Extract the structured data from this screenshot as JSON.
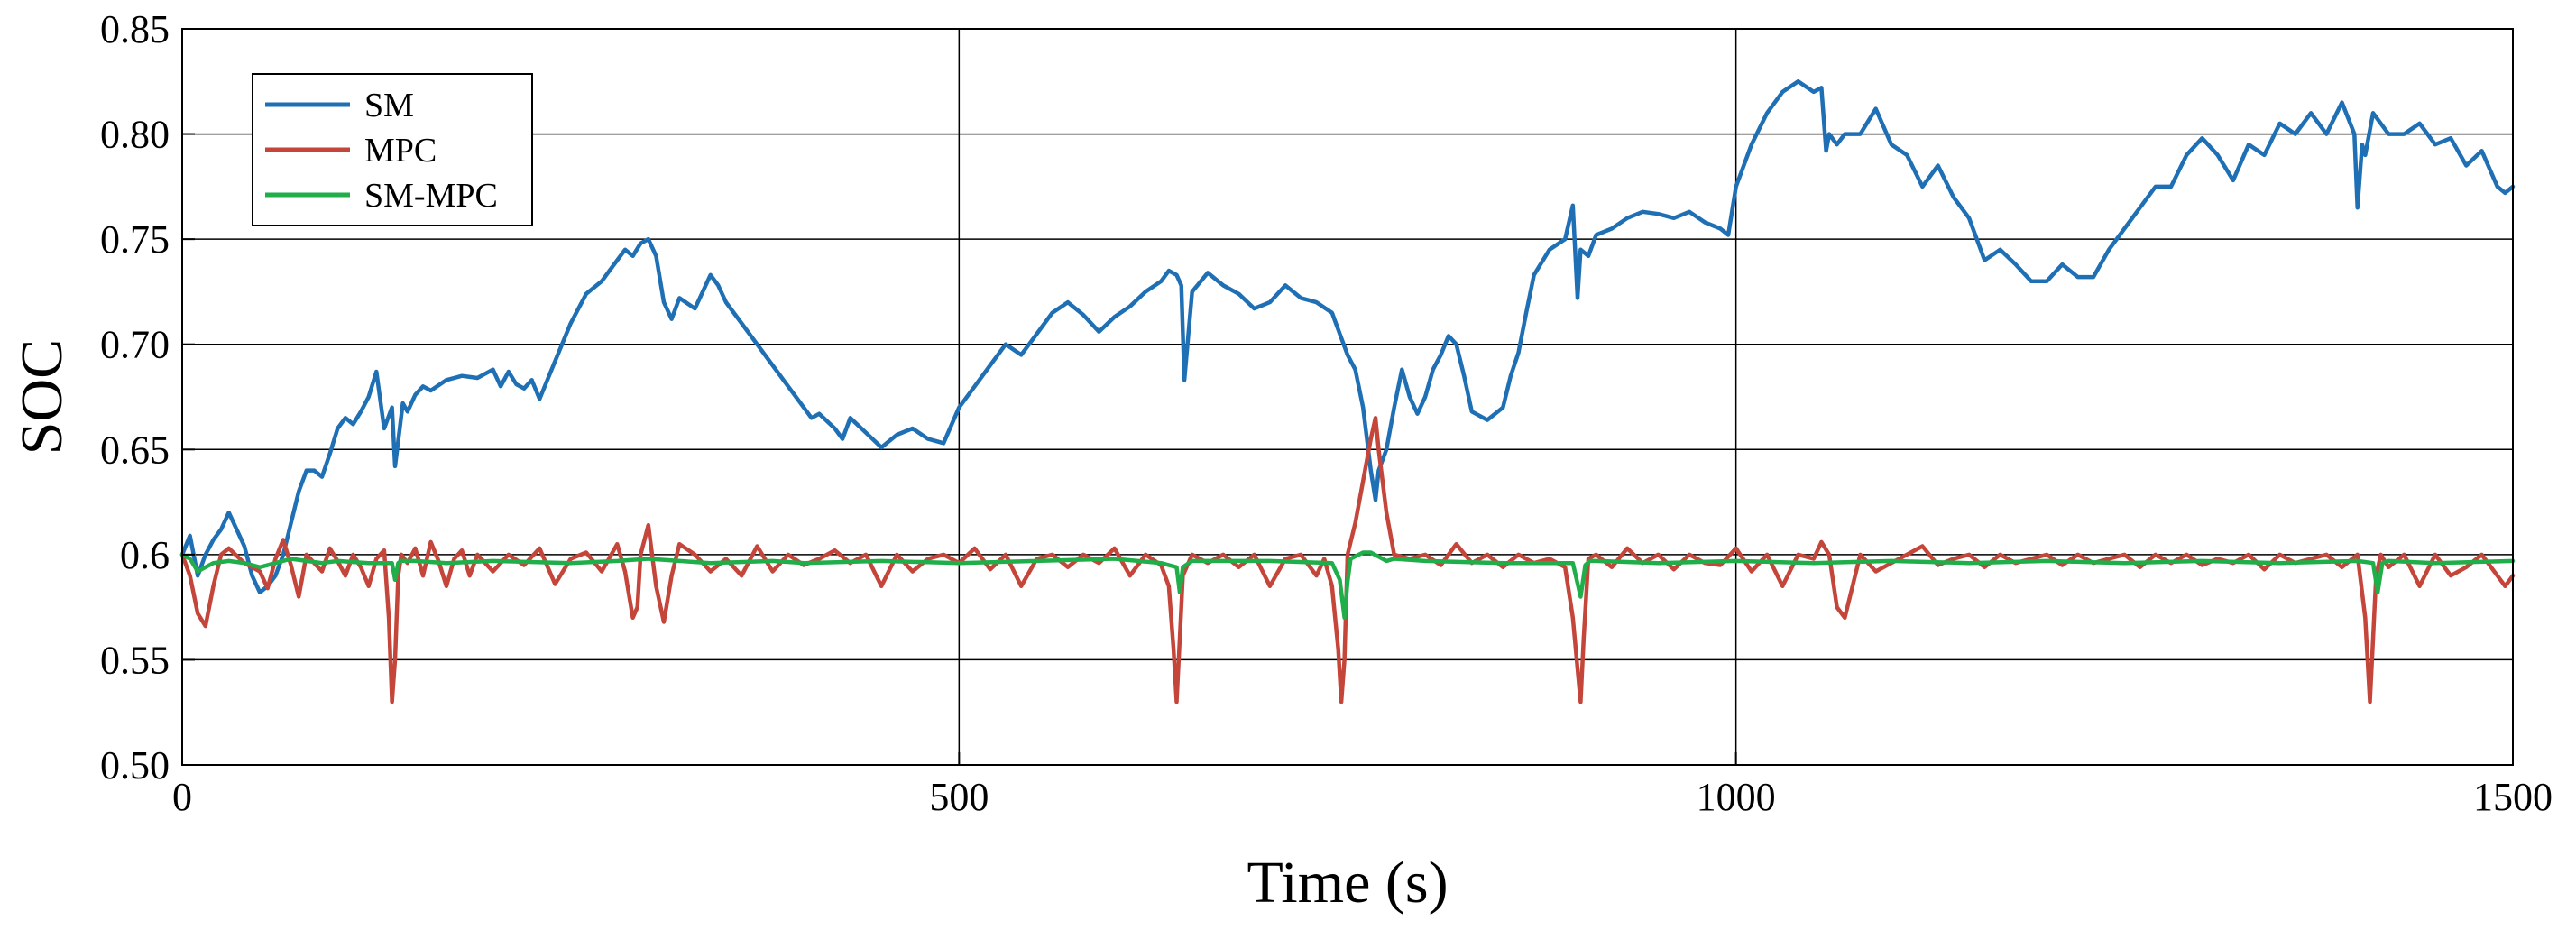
{
  "chart_data": {
    "type": "line",
    "title": "",
    "xlabel": "Time (s)",
    "ylabel": "SOC",
    "xlim": [
      0,
      1500
    ],
    "ylim": [
      0.5,
      0.85
    ],
    "grid": true,
    "legend_position": "top-left",
    "x_ticks": [
      {
        "value": 0,
        "label": "0"
      },
      {
        "value": 500,
        "label": "500"
      },
      {
        "value": 1000,
        "label": "1000"
      },
      {
        "value": 1500,
        "label": "1500"
      }
    ],
    "y_ticks": [
      {
        "value": 0.5,
        "label": "0.50"
      },
      {
        "value": 0.55,
        "label": "0.55"
      },
      {
        "value": 0.6,
        "label": "0.6"
      },
      {
        "value": 0.65,
        "label": "0.65"
      },
      {
        "value": 0.7,
        "label": "0.70"
      },
      {
        "value": 0.75,
        "label": "0.75"
      },
      {
        "value": 0.8,
        "label": "0.80"
      },
      {
        "value": 0.85,
        "label": "0.85"
      }
    ],
    "series": [
      {
        "name": "SM",
        "color": "#1f6fb4",
        "x": [
          0,
          5,
          10,
          15,
          20,
          25,
          30,
          40,
          45,
          50,
          55,
          60,
          65,
          70,
          75,
          80,
          85,
          90,
          95,
          100,
          105,
          110,
          115,
          120,
          125,
          130,
          135,
          137,
          140,
          142,
          145,
          150,
          155,
          160,
          170,
          180,
          190,
          200,
          205,
          210,
          215,
          220,
          225,
          230,
          240,
          250,
          260,
          270,
          275,
          280,
          285,
          290,
          295,
          300,
          305,
          310,
          315,
          320,
          330,
          340,
          345,
          350,
          360,
          370,
          380,
          390,
          400,
          405,
          410,
          420,
          425,
          430,
          440,
          450,
          460,
          470,
          480,
          490,
          500,
          510,
          520,
          530,
          540,
          545,
          550,
          560,
          570,
          580,
          590,
          600,
          610,
          620,
          630,
          635,
          640,
          643,
          645,
          650,
          660,
          670,
          680,
          690,
          700,
          710,
          720,
          730,
          740,
          745,
          750,
          755,
          760,
          765,
          768,
          770,
          775,
          780,
          785,
          790,
          795,
          800,
          805,
          810,
          815,
          820,
          825,
          830,
          840,
          850,
          855,
          860,
          865,
          870,
          880,
          890,
          895,
          898,
          900,
          905,
          910,
          920,
          930,
          940,
          950,
          960,
          970,
          980,
          990,
          995,
          1000,
          1010,
          1020,
          1030,
          1040,
          1050,
          1055,
          1058,
          1060,
          1065,
          1070,
          1080,
          1090,
          1100,
          1110,
          1120,
          1130,
          1140,
          1150,
          1160,
          1170,
          1180,
          1190,
          1200,
          1210,
          1220,
          1230,
          1240,
          1250,
          1260,
          1270,
          1280,
          1290,
          1300,
          1310,
          1320,
          1330,
          1340,
          1350,
          1360,
          1370,
          1380,
          1390,
          1398,
          1400,
          1403,
          1405,
          1410,
          1420,
          1430,
          1440,
          1450,
          1460,
          1470,
          1480,
          1490,
          1495,
          1500
        ],
        "y": [
          0.6,
          0.609,
          0.59,
          0.6,
          0.607,
          0.612,
          0.62,
          0.604,
          0.59,
          0.582,
          0.585,
          0.59,
          0.6,
          0.615,
          0.63,
          0.64,
          0.64,
          0.637,
          0.648,
          0.66,
          0.665,
          0.662,
          0.668,
          0.675,
          0.687,
          0.66,
          0.67,
          0.642,
          0.66,
          0.672,
          0.668,
          0.676,
          0.68,
          0.678,
          0.683,
          0.685,
          0.684,
          0.688,
          0.68,
          0.687,
          0.681,
          0.679,
          0.683,
          0.674,
          0.692,
          0.71,
          0.724,
          0.73,
          0.735,
          0.74,
          0.745,
          0.742,
          0.748,
          0.75,
          0.742,
          0.72,
          0.712,
          0.722,
          0.717,
          0.733,
          0.728,
          0.72,
          0.71,
          0.7,
          0.69,
          0.68,
          0.67,
          0.665,
          0.667,
          0.66,
          0.655,
          0.665,
          0.658,
          0.651,
          0.657,
          0.66,
          0.655,
          0.653,
          0.67,
          0.68,
          0.69,
          0.7,
          0.695,
          0.7,
          0.705,
          0.715,
          0.72,
          0.714,
          0.706,
          0.713,
          0.718,
          0.725,
          0.73,
          0.735,
          0.733,
          0.728,
          0.683,
          0.725,
          0.734,
          0.728,
          0.724,
          0.717,
          0.72,
          0.728,
          0.722,
          0.72,
          0.715,
          0.705,
          0.695,
          0.688,
          0.67,
          0.64,
          0.626,
          0.64,
          0.65,
          0.67,
          0.688,
          0.675,
          0.667,
          0.675,
          0.688,
          0.695,
          0.704,
          0.7,
          0.685,
          0.668,
          0.664,
          0.67,
          0.685,
          0.696,
          0.715,
          0.733,
          0.745,
          0.75,
          0.766,
          0.722,
          0.745,
          0.742,
          0.752,
          0.755,
          0.76,
          0.763,
          0.762,
          0.76,
          0.763,
          0.758,
          0.755,
          0.752,
          0.775,
          0.795,
          0.81,
          0.82,
          0.825,
          0.82,
          0.822,
          0.792,
          0.8,
          0.795,
          0.8,
          0.8,
          0.812,
          0.795,
          0.79,
          0.775,
          0.785,
          0.77,
          0.76,
          0.74,
          0.745,
          0.738,
          0.73,
          0.73,
          0.738,
          0.732,
          0.732,
          0.745,
          0.755,
          0.765,
          0.775,
          0.775,
          0.79,
          0.798,
          0.79,
          0.778,
          0.795,
          0.79,
          0.805,
          0.8,
          0.81,
          0.8,
          0.815,
          0.8,
          0.765,
          0.795,
          0.79,
          0.81,
          0.8,
          0.8,
          0.805,
          0.795,
          0.798,
          0.785,
          0.792,
          0.775,
          0.772,
          0.775
        ]
      },
      {
        "name": "MPC",
        "color": "#c4453a",
        "x": [
          0,
          5,
          10,
          15,
          20,
          25,
          30,
          40,
          50,
          55,
          60,
          65,
          70,
          75,
          80,
          85,
          90,
          95,
          100,
          105,
          110,
          115,
          120,
          125,
          130,
          133,
          135,
          137,
          139,
          141,
          145,
          150,
          155,
          160,
          165,
          170,
          175,
          180,
          185,
          190,
          195,
          200,
          210,
          220,
          230,
          240,
          250,
          260,
          270,
          280,
          285,
          290,
          293,
          295,
          300,
          305,
          310,
          315,
          320,
          330,
          340,
          350,
          360,
          370,
          380,
          390,
          400,
          410,
          420,
          430,
          440,
          450,
          460,
          470,
          480,
          490,
          500,
          510,
          520,
          530,
          540,
          550,
          560,
          570,
          580,
          590,
          600,
          610,
          620,
          630,
          635,
          638,
          640,
          642,
          644,
          650,
          660,
          670,
          680,
          690,
          700,
          710,
          720,
          730,
          735,
          740,
          744,
          746,
          748,
          750,
          755,
          760,
          765,
          768,
          770,
          775,
          780,
          790,
          800,
          810,
          820,
          830,
          840,
          850,
          860,
          870,
          880,
          890,
          895,
          900,
          902,
          905,
          910,
          920,
          930,
          940,
          950,
          960,
          970,
          980,
          990,
          1000,
          1010,
          1020,
          1030,
          1040,
          1050,
          1055,
          1060,
          1065,
          1070,
          1080,
          1090,
          1100,
          1110,
          1120,
          1130,
          1140,
          1150,
          1160,
          1170,
          1180,
          1190,
          1200,
          1210,
          1220,
          1230,
          1240,
          1250,
          1260,
          1270,
          1280,
          1290,
          1300,
          1310,
          1320,
          1330,
          1340,
          1350,
          1360,
          1370,
          1380,
          1390,
          1400,
          1405,
          1408,
          1410,
          1412,
          1415,
          1420,
          1430,
          1440,
          1450,
          1460,
          1470,
          1480,
          1490,
          1495,
          1500
        ],
        "y": [
          0.6,
          0.59,
          0.572,
          0.566,
          0.585,
          0.6,
          0.603,
          0.596,
          0.592,
          0.584,
          0.598,
          0.607,
          0.595,
          0.58,
          0.6,
          0.596,
          0.592,
          0.603,
          0.597,
          0.59,
          0.6,
          0.594,
          0.585,
          0.598,
          0.602,
          0.57,
          0.53,
          0.55,
          0.59,
          0.6,
          0.596,
          0.603,
          0.59,
          0.606,
          0.597,
          0.585,
          0.598,
          0.602,
          0.59,
          0.6,
          0.596,
          0.592,
          0.6,
          0.595,
          0.603,
          0.586,
          0.598,
          0.601,
          0.592,
          0.605,
          0.592,
          0.57,
          0.575,
          0.6,
          0.614,
          0.585,
          0.568,
          0.59,
          0.605,
          0.6,
          0.592,
          0.598,
          0.59,
          0.604,
          0.592,
          0.6,
          0.595,
          0.598,
          0.602,
          0.596,
          0.6,
          0.585,
          0.6,
          0.592,
          0.598,
          0.6,
          0.596,
          0.603,
          0.593,
          0.6,
          0.585,
          0.598,
          0.6,
          0.594,
          0.6,
          0.596,
          0.603,
          0.59,
          0.6,
          0.595,
          0.585,
          0.555,
          0.53,
          0.56,
          0.59,
          0.6,
          0.596,
          0.6,
          0.594,
          0.6,
          0.585,
          0.598,
          0.6,
          0.59,
          0.598,
          0.585,
          0.555,
          0.53,
          0.55,
          0.6,
          0.615,
          0.635,
          0.655,
          0.665,
          0.65,
          0.62,
          0.6,
          0.598,
          0.6,
          0.595,
          0.605,
          0.596,
          0.6,
          0.594,
          0.6,
          0.596,
          0.598,
          0.594,
          0.57,
          0.53,
          0.56,
          0.598,
          0.6,
          0.594,
          0.603,
          0.596,
          0.6,
          0.593,
          0.6,
          0.596,
          0.595,
          0.603,
          0.592,
          0.6,
          0.585,
          0.6,
          0.598,
          0.606,
          0.6,
          0.575,
          0.57,
          0.6,
          0.592,
          0.596,
          0.6,
          0.604,
          0.595,
          0.598,
          0.6,
          0.594,
          0.6,
          0.596,
          0.598,
          0.6,
          0.595,
          0.6,
          0.596,
          0.598,
          0.6,
          0.594,
          0.6,
          0.596,
          0.6,
          0.595,
          0.598,
          0.596,
          0.6,
          0.593,
          0.6,
          0.596,
          0.598,
          0.6,
          0.594,
          0.6,
          0.57,
          0.53,
          0.56,
          0.59,
          0.6,
          0.594,
          0.6,
          0.585,
          0.6,
          0.59,
          0.594,
          0.6,
          0.59,
          0.585,
          0.59
        ]
      },
      {
        "name": "SM-MPC",
        "color": "#1fae4a",
        "x": [
          0,
          5,
          10,
          15,
          20,
          30,
          40,
          50,
          60,
          70,
          80,
          90,
          100,
          120,
          135,
          137,
          139,
          141,
          150,
          170,
          200,
          250,
          280,
          300,
          320,
          340,
          380,
          400,
          450,
          500,
          550,
          600,
          630,
          640,
          642,
          644,
          650,
          700,
          740,
          745,
          748,
          750,
          752,
          760,
          765,
          770,
          775,
          780,
          800,
          850,
          895,
          900,
          903,
          906,
          910,
          950,
          1000,
          1050,
          1100,
          1150,
          1200,
          1250,
          1300,
          1350,
          1400,
          1410,
          1413,
          1416,
          1420,
          1450,
          1500
        ],
        "y": [
          0.6,
          0.598,
          0.592,
          0.594,
          0.596,
          0.597,
          0.596,
          0.594,
          0.596,
          0.598,
          0.597,
          0.596,
          0.597,
          0.596,
          0.596,
          0.588,
          0.596,
          0.597,
          0.597,
          0.596,
          0.597,
          0.596,
          0.597,
          0.598,
          0.597,
          0.596,
          0.597,
          0.596,
          0.597,
          0.596,
          0.597,
          0.598,
          0.596,
          0.594,
          0.582,
          0.594,
          0.597,
          0.597,
          0.596,
          0.588,
          0.57,
          0.587,
          0.598,
          0.601,
          0.601,
          0.599,
          0.597,
          0.598,
          0.597,
          0.596,
          0.596,
          0.58,
          0.595,
          0.597,
          0.597,
          0.596,
          0.597,
          0.596,
          0.597,
          0.596,
          0.597,
          0.596,
          0.597,
          0.596,
          0.597,
          0.596,
          0.582,
          0.596,
          0.597,
          0.596,
          0.597
        ]
      }
    ]
  }
}
